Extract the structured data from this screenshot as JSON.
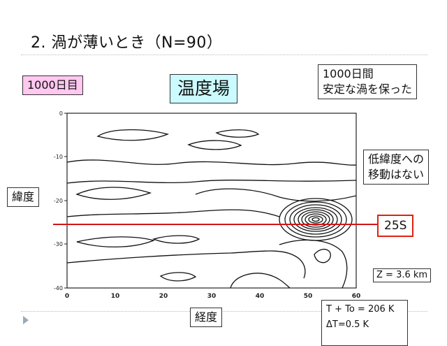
{
  "title": "2.  渦が薄いとき（N=90）",
  "day_label": "1000日目",
  "field_label": "温度場",
  "kept_label": [
    "1000日間",
    "安定な渦を保った"
  ],
  "no_move_label": [
    "低緯度への",
    "移動はない"
  ],
  "latitude_label": "緯度",
  "longitude_label": "経度",
  "marker_label": "25S",
  "z_label": "Z = 3.6 km",
  "temp_label": "T + To = 206 K",
  "delta_label": "ΔT=0.5 K",
  "plot": {
    "x_ticks": [
      "0",
      "10",
      "20",
      "30",
      "40",
      "50",
      "60"
    ],
    "y_ticks": [
      "0",
      "-10",
      "-20",
      "-30",
      "-40"
    ],
    "marker_latitude": -25,
    "marker_color": "#d0161a"
  }
}
